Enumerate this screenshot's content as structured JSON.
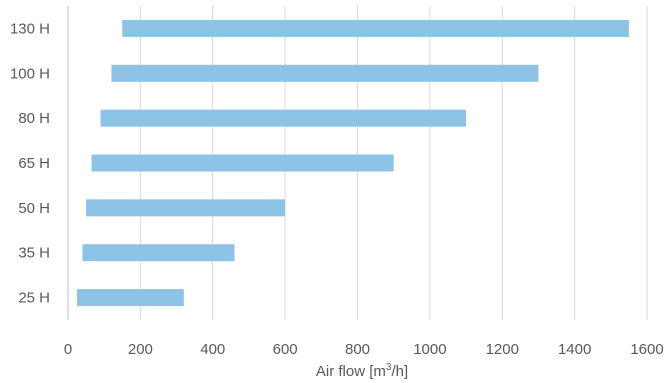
{
  "chart_data": {
    "type": "bar",
    "orientation": "horizontal",
    "style": "floating-range",
    "categories": [
      "130 H",
      "100 H",
      "80 H",
      "65 H",
      "50 H",
      "35 H",
      "25 H"
    ],
    "ranges": [
      [
        150,
        1550
      ],
      [
        120,
        1300
      ],
      [
        90,
        1100
      ],
      [
        65,
        900
      ],
      [
        50,
        600
      ],
      [
        40,
        460
      ],
      [
        25,
        320
      ]
    ],
    "xlabel_parts": {
      "base": "Air flow [m",
      "sup": "3",
      "end": "/h]"
    },
    "xlim": [
      0,
      1600
    ],
    "xticks": [
      "0",
      "200",
      "400",
      "600",
      "800",
      "1000",
      "1200",
      "1400",
      "1600"
    ],
    "grid": "vertical",
    "legend": "none",
    "bar_color": "#8cc3e6"
  }
}
